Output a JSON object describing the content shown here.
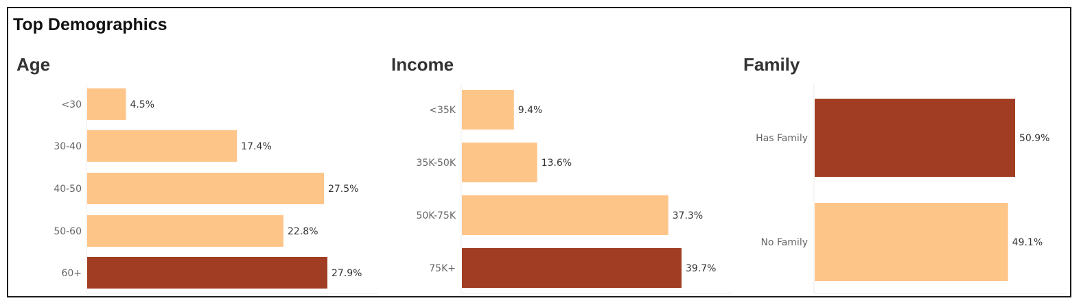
{
  "header": {
    "title": "Top Demographics"
  },
  "colors": {
    "default_bar": "#FEC589",
    "highlight_bar": "#A03D23",
    "axis_line": "#ececec"
  },
  "chart_data": [
    {
      "type": "bar",
      "orientation": "horizontal",
      "title": "Age",
      "categories": [
        "<30",
        "30-40",
        "40-50",
        "50-60",
        "60+"
      ],
      "values": [
        4.5,
        17.4,
        27.5,
        22.8,
        27.9
      ],
      "value_labels": [
        "4.5%",
        "17.4%",
        "27.5%",
        "22.8%",
        "27.9%"
      ],
      "highlight": "60+",
      "xlim": [
        0,
        27.9
      ]
    },
    {
      "type": "bar",
      "orientation": "horizontal",
      "title": "Income",
      "categories": [
        "<35K",
        "35K-50K",
        "50K-75K",
        "75K+"
      ],
      "values": [
        9.4,
        13.6,
        37.3,
        39.7
      ],
      "value_labels": [
        "9.4%",
        "13.6%",
        "37.3%",
        "39.7%"
      ],
      "highlight": "75K+",
      "xlim": [
        0,
        39.7
      ]
    },
    {
      "type": "bar",
      "orientation": "horizontal",
      "title": "Family",
      "categories": [
        "Has Family",
        "No Family"
      ],
      "values": [
        50.9,
        49.1
      ],
      "value_labels": [
        "50.9%",
        "49.1%"
      ],
      "highlight": "Has Family",
      "xlim": [
        0,
        50.9
      ]
    }
  ]
}
